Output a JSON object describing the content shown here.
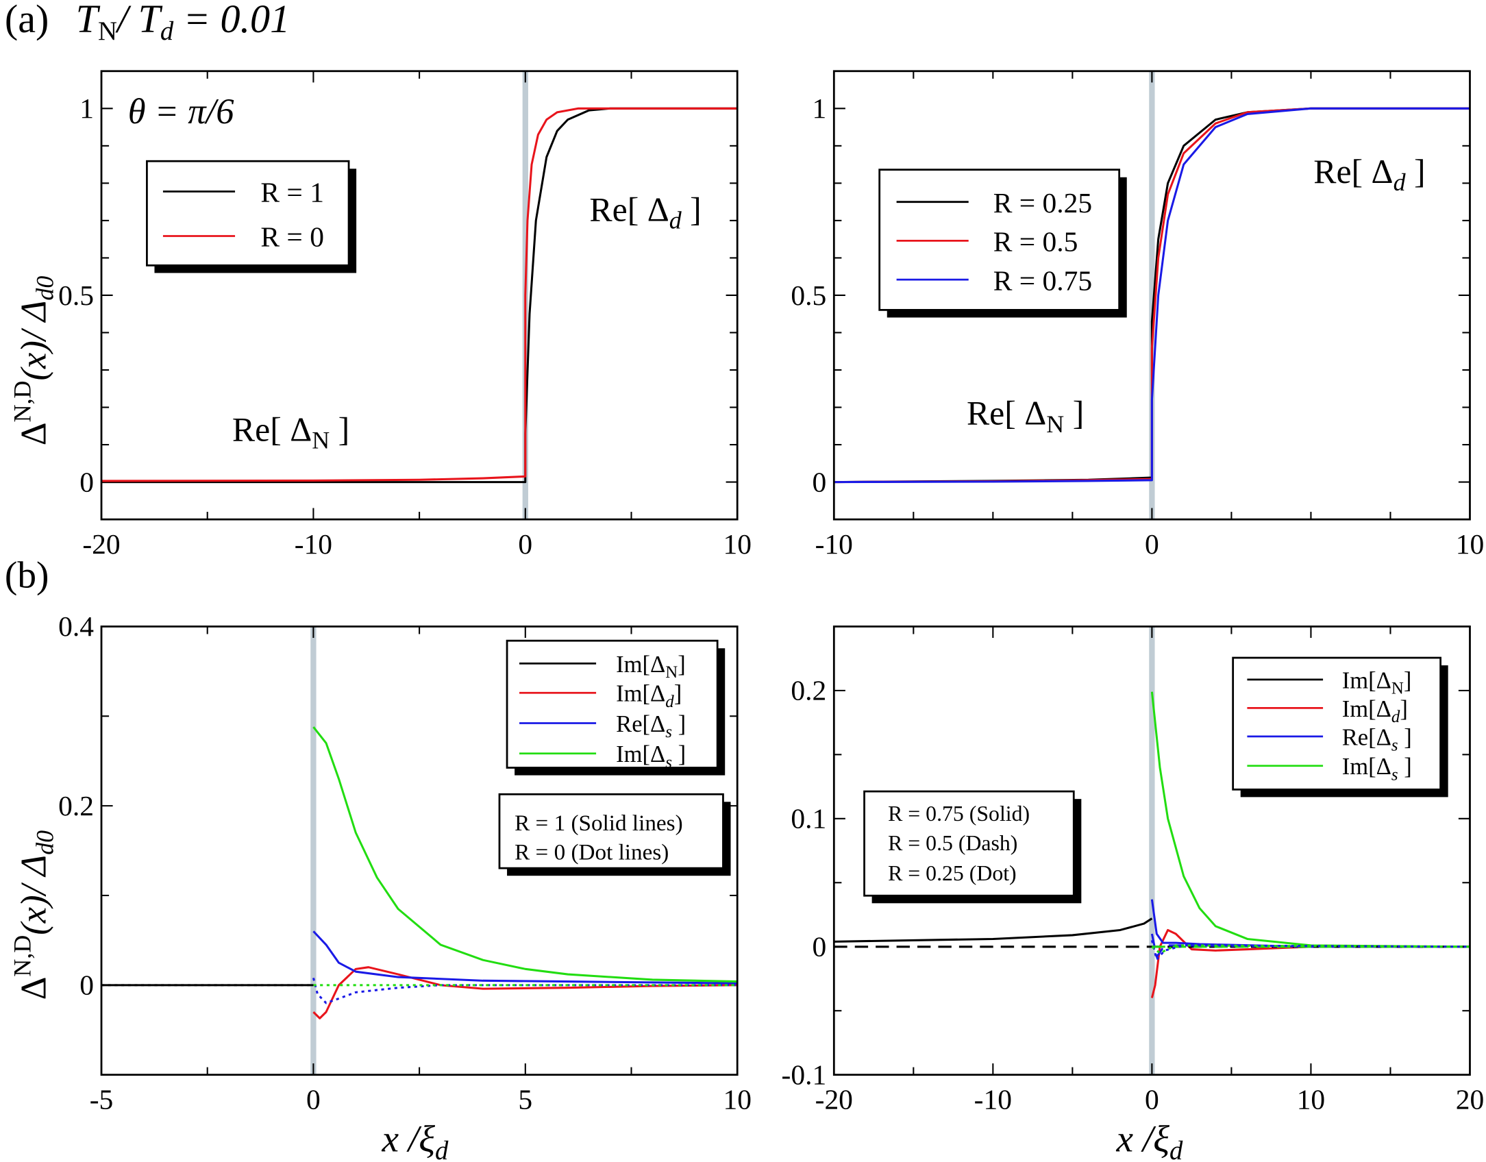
{
  "header": {
    "panel_a": "(a)",
    "ratio_T": "T",
    "ratio_N": "N",
    "ratio_slash": "/ ",
    "ratio_T2": "T",
    "ratio_d": "d",
    "ratio_value": " = 0.01",
    "panel_b": "(b)"
  },
  "ylabel": {
    "delta": "Δ",
    "sup": "N,D",
    "rest": "(x)/ Δ",
    "sub": "d0"
  },
  "xlabel": {
    "x": "x",
    "slash": " /",
    "xi": "ξ",
    "sub": "d"
  },
  "annotations": {
    "theta": "θ = π/6",
    "re_d": {
      "pre": "Re[ Δ",
      "sub": "d",
      "post": " ]"
    },
    "re_n": {
      "pre": "Re[ Δ",
      "sub": "N",
      "post": " ]"
    }
  },
  "legends": {
    "a_left": [
      "R = 1",
      "R = 0"
    ],
    "a_right": [
      "R = 0.25",
      "R = 0.5",
      "R = 0.75"
    ],
    "b_series": [
      {
        "pre": "Im[Δ",
        "sub": "N",
        "post": "]"
      },
      {
        "pre": "Im[Δ",
        "sub": "d",
        "post": "]"
      },
      {
        "pre": "Re[Δ",
        "sub": "s",
        "post": " ]"
      },
      {
        "pre": "Im[Δ",
        "sub": "s",
        "post": " ]"
      }
    ],
    "b_left_styles": [
      "R = 1 (Solid lines)",
      "R = 0  (Dot lines)"
    ],
    "b_right_styles": [
      "R = 0.75 (Solid)",
      "R = 0.5   (Dash)",
      "R = 0.25  (Dot)"
    ]
  },
  "colors": {
    "black": "#000000",
    "red": "#e8141b",
    "blue": "#1a1ae6",
    "green": "#22dd11",
    "interface": "#c0ccd4"
  },
  "chart_data": [
    {
      "type": "line",
      "id": "a_left",
      "xlim": [
        -20,
        10
      ],
      "ylim": [
        -0.1,
        1.1
      ],
      "xticks": [
        -20,
        -10,
        0,
        10
      ],
      "xtick_labels": [
        "-20",
        "-10",
        "0",
        "10"
      ],
      "xminor": 5,
      "yticks": [
        0,
        0.5,
        1
      ],
      "ytick_labels": [
        "0",
        "0.5",
        "1"
      ],
      "yminor": 0.1,
      "series": [
        {
          "name": "R = 1",
          "color": "black",
          "style": "solid",
          "x": [
            -20,
            0,
            0,
            0.2,
            0.5,
            1,
            1.5,
            2,
            3,
            4,
            10
          ],
          "y": [
            0,
            0,
            0.13,
            0.45,
            0.7,
            0.87,
            0.94,
            0.97,
            0.995,
            1,
            1
          ]
        },
        {
          "name": "R = 0",
          "color": "red",
          "style": "solid",
          "x": [
            -20,
            -10,
            -5,
            -2,
            0,
            0,
            0.1,
            0.3,
            0.6,
            1,
            1.5,
            2.5,
            10
          ],
          "y": [
            0.003,
            0.004,
            0.006,
            0.01,
            0.015,
            0.5,
            0.7,
            0.85,
            0.93,
            0.97,
            0.99,
            1,
            1
          ]
        }
      ]
    },
    {
      "type": "line",
      "id": "a_right",
      "xlim": [
        -10,
        10
      ],
      "ylim": [
        -0.1,
        1.1
      ],
      "xticks": [
        -10,
        0,
        10
      ],
      "xtick_labels": [
        "-10",
        "0",
        "10"
      ],
      "xminor": 2.5,
      "yticks": [
        0,
        0.5,
        1
      ],
      "ytick_labels": [
        "0",
        "0.5",
        "1"
      ],
      "yminor": 0.1,
      "series": [
        {
          "name": "R = 0.25",
          "color": "black",
          "style": "solid",
          "x": [
            -10,
            -5,
            -2,
            0,
            0,
            0.2,
            0.5,
            1,
            2,
            3,
            5,
            10
          ],
          "y": [
            0,
            0.003,
            0.006,
            0.012,
            0.43,
            0.65,
            0.8,
            0.9,
            0.97,
            0.99,
            1,
            1
          ]
        },
        {
          "name": "R = 0.5",
          "color": "red",
          "style": "solid",
          "x": [
            -10,
            -5,
            -2,
            0,
            0,
            0.2,
            0.5,
            1,
            2,
            3,
            5,
            10
          ],
          "y": [
            0,
            0.002,
            0.005,
            0.008,
            0.36,
            0.6,
            0.77,
            0.88,
            0.96,
            0.99,
            1,
            1
          ]
        },
        {
          "name": "R = 0.75",
          "color": "blue",
          "style": "solid",
          "x": [
            -10,
            -5,
            -2,
            0,
            0,
            0.2,
            0.5,
            1,
            2,
            3,
            5,
            10
          ],
          "y": [
            0,
            0.001,
            0.003,
            0.005,
            0.22,
            0.5,
            0.7,
            0.85,
            0.95,
            0.985,
            1,
            1
          ]
        }
      ]
    },
    {
      "type": "line",
      "id": "b_left",
      "xlim": [
        -5,
        10
      ],
      "ylim": [
        -0.1,
        0.4
      ],
      "xticks": [
        -5,
        0,
        5,
        10
      ],
      "xtick_labels": [
        "-5",
        "0",
        "5",
        "10"
      ],
      "xminor": 2.5,
      "yticks": [
        0,
        0.2,
        0.4
      ],
      "ytick_labels": [
        "0",
        "0.2",
        "0.4"
      ],
      "yminor": 0.1,
      "series": [
        {
          "name": "Im[ΔN] R=1",
          "color": "black",
          "style": "solid",
          "x": [
            -5,
            0
          ],
          "y": [
            0,
            0
          ]
        },
        {
          "name": "Im[Δd] R=1",
          "color": "red",
          "style": "solid",
          "x": [
            0,
            0.15,
            0.3,
            0.6,
            1,
            1.3,
            2,
            3,
            4,
            6,
            8,
            10
          ],
          "y": [
            -0.03,
            -0.037,
            -0.03,
            0,
            0.018,
            0.02,
            0.012,
            0,
            -0.004,
            -0.003,
            -0.001,
            0
          ]
        },
        {
          "name": "Re[Δs] R=1",
          "color": "blue",
          "style": "solid",
          "x": [
            0,
            0.3,
            0.6,
            1,
            2,
            4,
            6,
            10
          ],
          "y": [
            0.06,
            0.045,
            0.025,
            0.015,
            0.009,
            0.005,
            0.004,
            0.002
          ]
        },
        {
          "name": "Im[Δs] R=1",
          "color": "green",
          "style": "solid",
          "x": [
            0,
            0.3,
            0.6,
            1,
            1.5,
            2,
            3,
            4,
            5,
            6,
            8,
            10
          ],
          "y": [
            0.288,
            0.27,
            0.23,
            0.17,
            0.12,
            0.085,
            0.045,
            0.028,
            0.018,
            0.012,
            0.006,
            0.004
          ]
        },
        {
          "name": "Im[ΔN] R=0",
          "color": "black",
          "style": "dot",
          "x": [
            -5,
            0
          ],
          "y": [
            0,
            0
          ]
        },
        {
          "name": "Re[Δs] R=0",
          "color": "blue",
          "style": "dot",
          "x": [
            0,
            0.1,
            0.3,
            0.6,
            1,
            2,
            3,
            10
          ],
          "y": [
            0.008,
            -0.01,
            -0.02,
            -0.015,
            -0.008,
            -0.003,
            0,
            0
          ]
        },
        {
          "name": "Im[Δs] R=0",
          "color": "green",
          "style": "dot",
          "x": [
            0,
            10
          ],
          "y": [
            0,
            0
          ]
        }
      ]
    },
    {
      "type": "line",
      "id": "b_right",
      "xlim": [
        -20,
        20
      ],
      "ylim": [
        -0.1,
        0.25
      ],
      "xticks": [
        -20,
        -10,
        0,
        10,
        20
      ],
      "xtick_labels": [
        "-20",
        "-10",
        "0",
        "10",
        "20"
      ],
      "xminor": 5,
      "yticks": [
        -0.1,
        0,
        0.1,
        0.2
      ],
      "ytick_labels": [
        "-0.1",
        "0",
        "0.1",
        "0.2"
      ],
      "yminor": 0.05,
      "series": [
        {
          "name": "Im[ΔN] R=0.75",
          "color": "black",
          "style": "solid",
          "x": [
            -20,
            -10,
            -5,
            -2,
            -0.5,
            0
          ],
          "y": [
            0.004,
            0.006,
            0.009,
            0.013,
            0.018,
            0.022
          ]
        },
        {
          "name": "Im[Δd] R=0.75",
          "color": "red",
          "style": "solid",
          "x": [
            0,
            0.2,
            0.5,
            1,
            1.5,
            2.5,
            4,
            6,
            10,
            20
          ],
          "y": [
            -0.04,
            -0.03,
            0,
            0.013,
            0.01,
            -0.002,
            -0.003,
            -0.002,
            0,
            0
          ]
        },
        {
          "name": "Re[Δs] R=0.75",
          "color": "blue",
          "style": "solid",
          "x": [
            0,
            0.3,
            0.7,
            1.5,
            3,
            10,
            20
          ],
          "y": [
            0.037,
            0.01,
            0.003,
            0.003,
            0.002,
            0,
            0
          ]
        },
        {
          "name": "Im[Δs] R=0.75",
          "color": "green",
          "style": "solid",
          "x": [
            0,
            0.5,
            1,
            2,
            3,
            4,
            6,
            10,
            20
          ],
          "y": [
            0.199,
            0.14,
            0.1,
            0.055,
            0.03,
            0.016,
            0.006,
            0.001,
            0
          ]
        },
        {
          "name": "Im[ΔN] R=0.5",
          "color": "black",
          "style": "dash",
          "x": [
            -20,
            0,
            20
          ],
          "y": [
            0,
            0,
            0
          ]
        },
        {
          "name": "Re[Δs] R=0.5",
          "color": "blue",
          "style": "dash",
          "x": [
            0,
            0.3,
            0.8,
            2,
            10
          ],
          "y": [
            0.01,
            -0.008,
            0.001,
            0.001,
            0
          ]
        },
        {
          "name": "Im[Δs] R=0.5",
          "color": "green",
          "style": "dash",
          "x": [
            0,
            20
          ],
          "y": [
            0,
            0
          ]
        },
        {
          "name": "Re[Δs] R=0.25",
          "color": "blue",
          "style": "dot",
          "x": [
            0,
            0.3,
            0.8,
            2,
            20
          ],
          "y": [
            0.005,
            -0.01,
            -0.003,
            0.001,
            0
          ]
        },
        {
          "name": "Im[Δd] R=0.25",
          "color": "green",
          "style": "dot",
          "x": [
            0,
            0.5,
            1.5,
            20
          ],
          "y": [
            0,
            -0.005,
            0.001,
            0
          ]
        }
      ]
    }
  ]
}
